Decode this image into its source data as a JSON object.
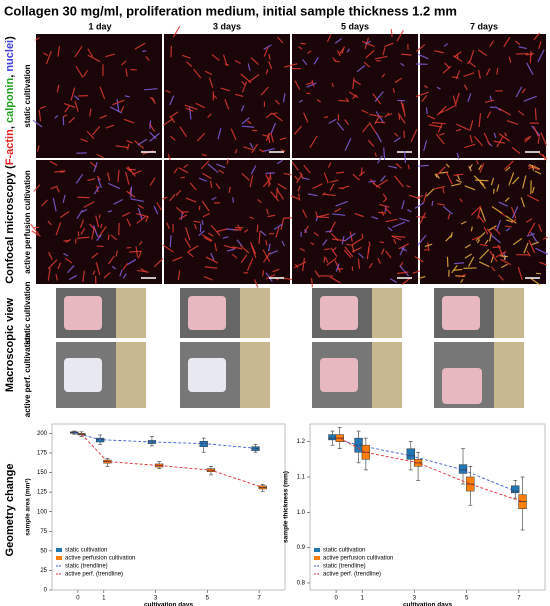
{
  "title": "Collagen 30 mg/ml, proliferation medium, initial sample thickness 1.2 mm",
  "columns": [
    "1 day",
    "3 days",
    "5 days",
    "7 days"
  ],
  "confocal": {
    "parts": [
      "Confocal microscopy (",
      "F-actin",
      ", ",
      "calponin",
      ", ",
      "nuclei",
      ")"
    ],
    "rows": [
      "static cultivation",
      "active perfusion cultivation"
    ]
  },
  "macroscopic": {
    "label": "Macroscopic view",
    "rows": [
      "static cultivation",
      "active perf. cultivation"
    ]
  },
  "geometry_label": "Geometry change",
  "chart_data": [
    {
      "type": "box",
      "xlabel": "cultivation days",
      "ylabel": "sample area (mm²)",
      "x": [
        0,
        1,
        3,
        5,
        7
      ],
      "xlim": [
        -1,
        8
      ],
      "xticks": [
        0,
        1,
        3,
        5,
        7
      ],
      "ylim": [
        0,
        212
      ],
      "yticks": [
        0,
        25,
        50,
        75,
        100,
        125,
        150,
        175,
        200
      ],
      "series": [
        {
          "name": "static cultivation",
          "trend_name": "static (trendline)",
          "color": "#1f77b4",
          "trend_color": "#3a5fd0",
          "min": [
            199,
            186,
            184,
            176,
            176
          ],
          "q1": [
            200,
            189,
            187,
            183,
            178
          ],
          "median": [
            201,
            192,
            189,
            187,
            181
          ],
          "q3": [
            202,
            194,
            191,
            190,
            183
          ],
          "max": [
            203,
            198,
            196,
            194,
            186
          ]
        },
        {
          "name": "active perfusion cultivation",
          "trend_name": "active perf. (trendline)",
          "color": "#ff7f0e",
          "trend_color": "#e03030",
          "min": [
            196,
            158,
            155,
            147,
            126
          ],
          "q1": [
            198,
            162,
            157,
            151,
            129
          ],
          "median": [
            199,
            164,
            159,
            153,
            131
          ],
          "q3": [
            200,
            166,
            161,
            155,
            133
          ],
          "max": [
            202,
            168,
            164,
            158,
            135
          ]
        }
      ]
    },
    {
      "type": "box",
      "xlabel": "cultivation days",
      "ylabel": "sample thickness (mm)",
      "x": [
        0,
        1,
        3,
        5,
        7
      ],
      "xlim": [
        -1,
        8
      ],
      "xticks": [
        0,
        1,
        3,
        5,
        7
      ],
      "ylim": [
        0.78,
        1.25
      ],
      "yticks": [
        0.8,
        0.9,
        {
          "value": 1,
          "label": "1.0"
        },
        1.1,
        1.2
      ],
      "series": [
        {
          "name": "static cultivation",
          "trend_name": "static (trendline)",
          "color": "#1f77b4",
          "trend_color": "#3a5fd0",
          "min": [
            1.19,
            1.14,
            1.12,
            1.08,
            1.04
          ],
          "q1": [
            1.205,
            1.17,
            1.15,
            1.11,
            1.055
          ],
          "median": [
            1.21,
            1.19,
            1.16,
            1.12,
            1.06
          ],
          "q3": [
            1.22,
            1.21,
            1.18,
            1.135,
            1.075
          ],
          "max": [
            1.23,
            1.23,
            1.2,
            1.18,
            1.09
          ]
        },
        {
          "name": "active perfusion cultivation",
          "trend_name": "active perf. (trendline)",
          "color": "#ff7f0e",
          "trend_color": "#e03030",
          "min": [
            1.18,
            1.12,
            1.09,
            1.02,
            0.95
          ],
          "q1": [
            1.2,
            1.15,
            1.13,
            1.06,
            1.01
          ],
          "median": [
            1.21,
            1.17,
            1.14,
            1.08,
            1.03
          ],
          "q3": [
            1.22,
            1.19,
            1.15,
            1.1,
            1.05
          ],
          "max": [
            1.24,
            1.21,
            1.17,
            1.13,
            1.1
          ]
        }
      ]
    }
  ]
}
